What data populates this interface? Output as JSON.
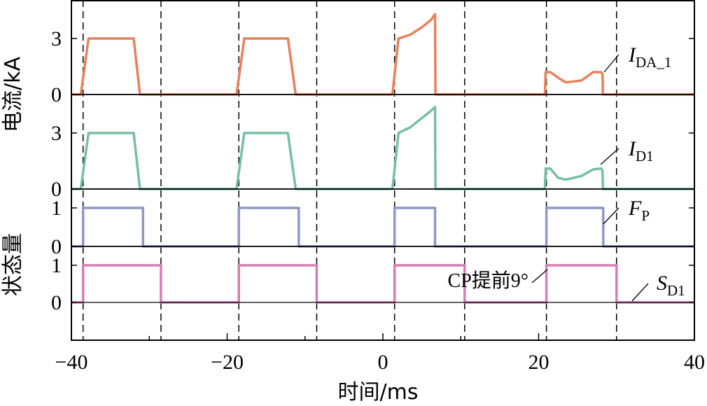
{
  "chart_data": {
    "type": "line",
    "xlabel": "时间/ms",
    "xlim": [
      -40,
      40
    ],
    "xticks": [
      "−40",
      "−20",
      "0",
      "20",
      "40"
    ],
    "event_times": [
      -38.5,
      -28.5,
      -18.5,
      -8.5,
      1.5,
      10.5,
      21,
      30
    ],
    "groups": [
      {
        "ylabel": "电流/kA"
      },
      {
        "ylabel": "状态量"
      }
    ],
    "panels": [
      {
        "series": {
          "label": "I",
          "sub": "DA_1",
          "color": "#E8805A",
          "points": [
            [
              -40,
              0
            ],
            [
              -38.8,
              0
            ],
            [
              -38.7,
              0.3
            ],
            [
              -37.8,
              3
            ],
            [
              -35,
              3
            ],
            [
              -33,
              3
            ],
            [
              -32,
              3
            ],
            [
              -31.2,
              0
            ],
            [
              -18.8,
              0
            ],
            [
              -18.7,
              0.3
            ],
            [
              -17.8,
              3
            ],
            [
              -15,
              3
            ],
            [
              -12.2,
              3
            ],
            [
              -11.2,
              0
            ],
            [
              1.2,
              0
            ],
            [
              1.3,
              0.3
            ],
            [
              2,
              3
            ],
            [
              3.5,
              3.2
            ],
            [
              5,
              3.6
            ],
            [
              6.2,
              4
            ],
            [
              6.7,
              4.3
            ],
            [
              6.75,
              0
            ],
            [
              20.8,
              0
            ],
            [
              20.9,
              1.2
            ],
            [
              21.5,
              1.2
            ],
            [
              22.5,
              0.9
            ],
            [
              23.5,
              0.65
            ],
            [
              25.5,
              0.75
            ],
            [
              27,
              1.2
            ],
            [
              28,
              1.2
            ],
            [
              28.2,
              1.1
            ],
            [
              28.25,
              0
            ],
            [
              40,
              0
            ]
          ]
        },
        "ylim": [
          0,
          4.6
        ],
        "yticks": [
          "0",
          "3"
        ],
        "ytick_values": [
          0,
          3
        ]
      },
      {
        "series": {
          "label": "I",
          "sub": "D1",
          "color": "#76BFA3",
          "points": [
            [
              -40,
              0
            ],
            [
              -38.8,
              0
            ],
            [
              -38.7,
              0.3
            ],
            [
              -37.8,
              3
            ],
            [
              -35,
              3
            ],
            [
              -33,
              3
            ],
            [
              -32,
              3
            ],
            [
              -31.2,
              0
            ],
            [
              -18.8,
              0
            ],
            [
              -18.7,
              0.3
            ],
            [
              -17.8,
              3
            ],
            [
              -15,
              3
            ],
            [
              -12.2,
              3
            ],
            [
              -11.2,
              0
            ],
            [
              1.2,
              0
            ],
            [
              1.3,
              0.3
            ],
            [
              2,
              3
            ],
            [
              3.5,
              3.3
            ],
            [
              5,
              3.8
            ],
            [
              6.2,
              4.2
            ],
            [
              6.7,
              4.4
            ],
            [
              6.75,
              0
            ],
            [
              20.8,
              0
            ],
            [
              20.9,
              1.1
            ],
            [
              21.5,
              1.1
            ],
            [
              22.5,
              0.6
            ],
            [
              23.5,
              0.5
            ],
            [
              25.5,
              0.7
            ],
            [
              27,
              1.05
            ],
            [
              28,
              1.1
            ],
            [
              28.2,
              1.0
            ],
            [
              28.25,
              0
            ],
            [
              40,
              0
            ]
          ]
        },
        "ylim": [
          0,
          4.6
        ],
        "yticks": [
          "0",
          "3"
        ],
        "ytick_values": [
          0,
          3
        ]
      },
      {
        "series": {
          "label": "F",
          "sub": "P",
          "color": "#8E97C8",
          "points": [
            [
              -40,
              0
            ],
            [
              -38.5,
              0
            ],
            [
              -38.5,
              1
            ],
            [
              -30.8,
              1
            ],
            [
              -30.8,
              0
            ],
            [
              -18.5,
              0
            ],
            [
              -18.5,
              1
            ],
            [
              -10.8,
              1
            ],
            [
              -10.8,
              0
            ],
            [
              1.5,
              0
            ],
            [
              1.5,
              1
            ],
            [
              6.7,
              1
            ],
            [
              6.7,
              0
            ],
            [
              21,
              0
            ],
            [
              21,
              1
            ],
            [
              28.3,
              1
            ],
            [
              28.3,
              0
            ],
            [
              40,
              0
            ]
          ]
        },
        "ylim": [
          0,
          1.3
        ],
        "yticks": [
          "0",
          "1"
        ],
        "ytick_values": [
          0,
          1
        ]
      },
      {
        "series": {
          "label": "S",
          "sub": "D1",
          "color": "#D47FB0",
          "points": [
            [
              -40,
              0
            ],
            [
              -38.5,
              0
            ],
            [
              -38.5,
              1
            ],
            [
              -28.5,
              1
            ],
            [
              -28.5,
              0
            ],
            [
              -18.5,
              0
            ],
            [
              -18.5,
              1
            ],
            [
              -8.5,
              1
            ],
            [
              -8.5,
              0
            ],
            [
              1.5,
              0
            ],
            [
              1.5,
              1
            ],
            [
              10.5,
              1
            ],
            [
              10.5,
              0
            ],
            [
              21,
              0
            ],
            [
              21,
              1
            ],
            [
              30,
              1
            ],
            [
              30,
              0
            ],
            [
              40,
              0
            ]
          ]
        },
        "ylim": [
          -1,
          1.3
        ],
        "yticks": [
          "0",
          "1"
        ],
        "ytick_values": [
          0,
          1
        ]
      }
    ],
    "annotation": {
      "text": "CP提前9°"
    }
  }
}
